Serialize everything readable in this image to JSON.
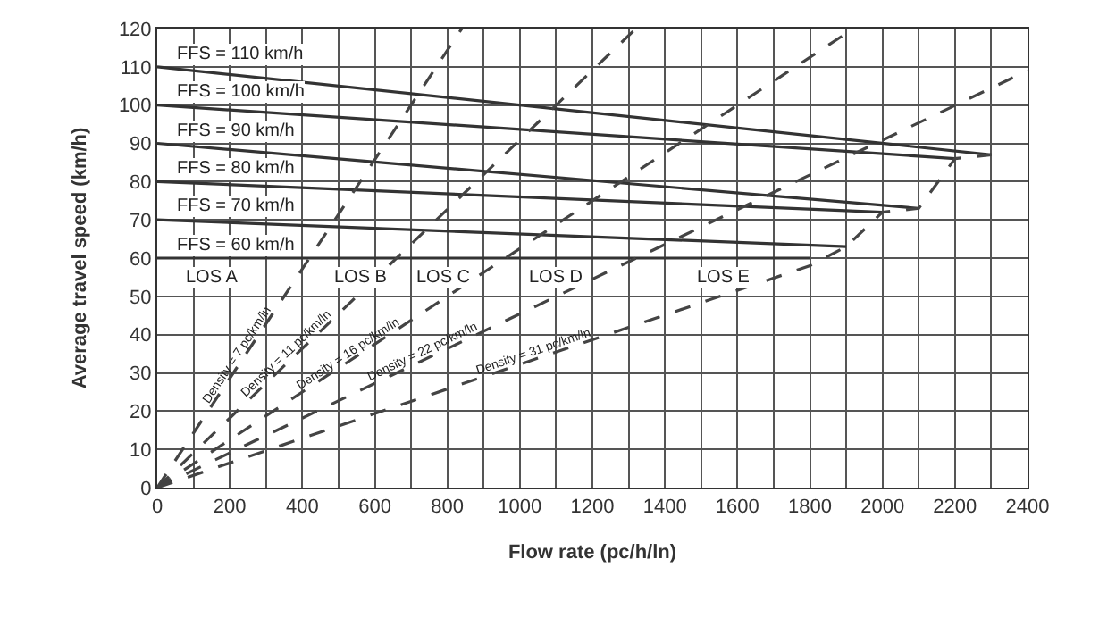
{
  "chart_data": {
    "type": "line",
    "xlabel": "Flow rate (pc/h/ln)",
    "ylabel": "Average travel speed (km/h)",
    "xlim": [
      0,
      2400
    ],
    "ylim": [
      0,
      120
    ],
    "xticks": [
      0,
      {
        "value": 100,
        "label": null
      },
      200,
      {
        "value": 300,
        "label": null
      },
      400,
      {
        "value": 500,
        "label": null
      },
      600,
      {
        "value": 700,
        "label": null
      },
      800,
      {
        "value": 900,
        "label": null
      },
      1000,
      {
        "value": 1100,
        "label": null
      },
      1200,
      {
        "value": 1300,
        "label": null
      },
      1400,
      {
        "value": 1500,
        "label": null
      },
      1600,
      {
        "value": 1700,
        "label": null
      },
      1800,
      {
        "value": 1900,
        "label": null
      },
      2000,
      {
        "value": 2100,
        "label": null
      },
      2200,
      {
        "value": 2300,
        "label": null
      },
      2400
    ],
    "yticks": [
      0,
      10,
      20,
      30,
      40,
      50,
      60,
      70,
      80,
      90,
      100,
      110,
      120
    ],
    "grid": true,
    "legend": false,
    "marker": "none",
    "series": [
      {
        "name": "FFS = 110 km/h",
        "color": "#333333",
        "line_style": "solid",
        "x": [
          0,
          2300
        ],
        "values": [
          110,
          87
        ]
      },
      {
        "name": "FFS = 100 km/h",
        "color": "#333333",
        "line_style": "solid",
        "x": [
          0,
          2200
        ],
        "values": [
          100,
          86
        ]
      },
      {
        "name": "FFS = 90 km/h",
        "color": "#333333",
        "line_style": "solid",
        "x": [
          0,
          2100
        ],
        "values": [
          90,
          73
        ]
      },
      {
        "name": "FFS = 80 km/h",
        "color": "#333333",
        "line_style": "solid",
        "x": [
          0,
          2000
        ],
        "values": [
          80,
          72
        ]
      },
      {
        "name": "FFS = 70 km/h",
        "color": "#333333",
        "line_style": "solid",
        "x": [
          0,
          1900
        ],
        "values": [
          70,
          63
        ]
      },
      {
        "name": "FFS = 60 km/h",
        "color": "#333333",
        "line_style": "solid",
        "x": [
          0,
          1800
        ],
        "values": [
          60,
          60
        ]
      },
      {
        "name": "Density = 7 pc/km/ln",
        "color": "#444444",
        "line_style": "dashed",
        "x": [
          0,
          840
        ],
        "values": [
          0,
          120
        ]
      },
      {
        "name": "Density = 11 pc/km/ln",
        "color": "#444444",
        "line_style": "dashed",
        "x": [
          0,
          1320
        ],
        "values": [
          0,
          120
        ]
      },
      {
        "name": "Density = 16 pc/km/ln",
        "color": "#444444",
        "line_style": "dashed",
        "x": [
          0,
          1920
        ],
        "values": [
          0,
          120
        ]
      },
      {
        "name": "Density = 22 pc/km/ln",
        "color": "#444444",
        "line_style": "dashed",
        "x": [
          0,
          2400
        ],
        "values": [
          0,
          109
        ]
      },
      {
        "name": "Density = 31 pc/km/ln",
        "color": "#444444",
        "line_style": "dashed",
        "x": [
          0,
          1800,
          1900,
          2000,
          2100,
          2200,
          2300
        ],
        "values": [
          0,
          58,
          63,
          72,
          73,
          86,
          87
        ]
      }
    ],
    "annotations": [
      {
        "text": "LOS A",
        "x": 150,
        "y": 55
      },
      {
        "text": "LOS B",
        "x": 560,
        "y": 55
      },
      {
        "text": "LOS C",
        "x": 790,
        "y": 55
      },
      {
        "text": "LOS D",
        "x": 1100,
        "y": 55
      },
      {
        "text": "LOS E",
        "x": 1560,
        "y": 55
      }
    ]
  }
}
